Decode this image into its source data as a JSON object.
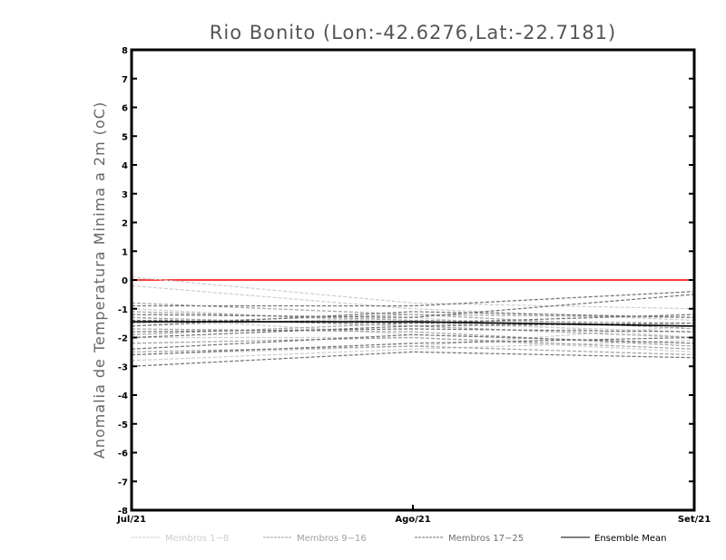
{
  "chart_data": {
    "type": "line",
    "title": "Rio Bonito (Lon:-42.6276,Lat:-22.7181)",
    "xlabel": "",
    "ylabel": "Anomalia de Temperatura Minima a 2m (oC)",
    "x": [
      "Jul/21",
      "Ago/21",
      "Set/21"
    ],
    "ylim": [
      -8,
      8
    ],
    "yticks": [
      8,
      7,
      6,
      5,
      4,
      3,
      2,
      1,
      0,
      -1,
      -2,
      -3,
      -4,
      -5,
      -6,
      -7,
      -8
    ],
    "grid": false,
    "reference_line": {
      "value": 0,
      "color": "#ff4040"
    },
    "legend_position": "bottom",
    "groups": [
      {
        "name": "Membros 1-8",
        "color": "#cccccc",
        "style": "dashed",
        "series": [
          [
            0.1,
            -0.8,
            -1.0
          ],
          [
            -0.2,
            -1.0,
            -1.4
          ],
          [
            -1.0,
            -1.5,
            -1.8
          ],
          [
            -1.3,
            -1.9,
            -2.2
          ],
          [
            -1.6,
            -1.3,
            -2.0
          ],
          [
            -2.0,
            -2.0,
            -2.5
          ],
          [
            -2.6,
            -2.3,
            -1.6
          ],
          [
            -2.8,
            -2.4,
            -2.1
          ]
        ]
      },
      {
        "name": "Membros 9-16",
        "color": "#a0a0a0",
        "style": "dashed",
        "series": [
          [
            -0.8,
            -1.2,
            -1.3
          ],
          [
            -1.1,
            -1.4,
            -1.5
          ],
          [
            -1.3,
            -1.6,
            -2.0
          ],
          [
            -1.5,
            -1.2,
            -1.7
          ],
          [
            -1.7,
            -1.8,
            -2.3
          ],
          [
            -1.9,
            -1.5,
            -1.6
          ],
          [
            -2.2,
            -2.0,
            -2.4
          ],
          [
            -2.5,
            -2.3,
            -2.6
          ]
        ]
      },
      {
        "name": "Membros 17-25",
        "color": "#707070",
        "style": "dashed",
        "series": [
          [
            -0.9,
            -0.9,
            -0.4
          ],
          [
            -1.2,
            -1.3,
            -0.5
          ],
          [
            -1.4,
            -1.5,
            -1.2
          ],
          [
            -1.6,
            -1.1,
            -1.3
          ],
          [
            -1.8,
            -1.7,
            -1.8
          ],
          [
            -2.0,
            -1.6,
            -1.5
          ],
          [
            -2.4,
            -1.9,
            -2.2
          ],
          [
            -2.6,
            -2.2,
            -2.0
          ],
          [
            -3.0,
            -2.5,
            -2.7
          ]
        ]
      },
      {
        "name": "Ensemble Mean",
        "color": "#000000",
        "style": "solid",
        "series": [
          [
            -1.45,
            -1.45,
            -1.6
          ]
        ]
      }
    ]
  }
}
